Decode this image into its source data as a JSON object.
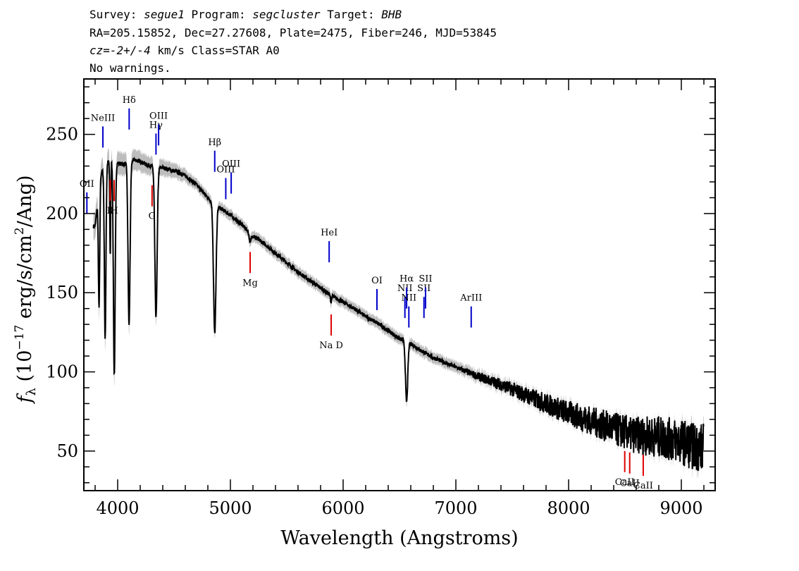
{
  "header": {
    "survey_label": "Survey:",
    "survey_value": "segue1",
    "program_label": "Program:",
    "program_value": "segcluster",
    "target_label": "Target:",
    "target_value": "BHB",
    "line2": "RA=205.15852, Dec=27.27608, Plate=2475, Fiber=246, MJD=53845",
    "cz_label": "cz",
    "cz_value": "=-2+/-4",
    "cz_rest": " km/s Class=STAR A0",
    "line4": "No warnings."
  },
  "colors": {
    "spectrum": "#000000",
    "error_band": "#bdbdbd",
    "emission_marker": "#0000cc",
    "absorption_marker": "#dd0000"
  },
  "chart_data": {
    "type": "line",
    "xlabel": "Wavelength (Angstroms)",
    "ylabel": "f_λ (10^-17 erg/s/cm^2/Ang)",
    "ylabel_parts": {
      "f": "f",
      "lambda": "λ",
      "open": " (10",
      "exp": "−17",
      "mid": " erg/s/cm",
      "sq": "2",
      "close": "/Ang)"
    },
    "xlim": [
      3700,
      9300
    ],
    "ylim": [
      25,
      285
    ],
    "x_ticks": [
      4000,
      5000,
      6000,
      7000,
      8000,
      9000
    ],
    "x_tick_labels": [
      "4000",
      "5000",
      "6000",
      "7000",
      "8000",
      "9000"
    ],
    "y_ticks": [
      50,
      100,
      150,
      200,
      250
    ],
    "y_tick_labels": [
      "50",
      "100",
      "150",
      "200",
      "250"
    ],
    "series": [
      {
        "continuum": [
          [
            3800,
            192
          ],
          [
            3850,
            225
          ],
          [
            3900,
            232
          ],
          [
            3950,
            234
          ],
          [
            4000,
            232
          ],
          [
            4050,
            231
          ],
          [
            4100,
            233
          ],
          [
            4150,
            234
          ],
          [
            4200,
            233
          ],
          [
            4250,
            231
          ],
          [
            4300,
            230
          ],
          [
            4350,
            229
          ],
          [
            4400,
            229
          ],
          [
            4450,
            228
          ],
          [
            4500,
            227
          ],
          [
            4600,
            224
          ],
          [
            4700,
            218
          ],
          [
            4800,
            210
          ],
          [
            4900,
            204
          ],
          [
            5000,
            199
          ],
          [
            5100,
            193
          ],
          [
            5200,
            186
          ],
          [
            5300,
            181
          ],
          [
            5400,
            175
          ],
          [
            5500,
            169
          ],
          [
            5600,
            163
          ],
          [
            5700,
            158
          ],
          [
            5800,
            153
          ],
          [
            5900,
            148
          ],
          [
            6000,
            144
          ],
          [
            6100,
            140
          ],
          [
            6200,
            135
          ],
          [
            6300,
            131
          ],
          [
            6400,
            126
          ],
          [
            6500,
            121
          ],
          [
            6600,
            118
          ],
          [
            6700,
            113
          ],
          [
            6800,
            109
          ],
          [
            6900,
            106
          ],
          [
            7000,
            103
          ],
          [
            7200,
            97
          ],
          [
            7400,
            92
          ],
          [
            7600,
            86
          ],
          [
            7800,
            80
          ],
          [
            8000,
            74
          ],
          [
            8200,
            69
          ],
          [
            8400,
            64
          ],
          [
            8600,
            60
          ],
          [
            8800,
            59
          ],
          [
            9000,
            56
          ],
          [
            9100,
            53
          ],
          [
            9200,
            52
          ]
        ],
        "absorption_lines": [
          {
            "center": 3835,
            "depth": 75,
            "width": 6
          },
          {
            "center": 3889,
            "depth": 110,
            "width": 7
          },
          {
            "center": 3934,
            "depth": 60,
            "width": 4
          },
          {
            "center": 3970,
            "depth": 135,
            "width": 8
          },
          {
            "center": 4101,
            "depth": 103,
            "width": 9
          },
          {
            "center": 4340,
            "depth": 95,
            "width": 10
          },
          {
            "center": 4861,
            "depth": 82,
            "width": 11
          },
          {
            "center": 5175,
            "depth": 6,
            "width": 8
          },
          {
            "center": 5892,
            "depth": 4,
            "width": 5
          },
          {
            "center": 6563,
            "depth": 38,
            "width": 10
          },
          {
            "center": 8542,
            "depth": 3,
            "width": 5
          }
        ]
      }
    ],
    "emission_markers": [
      {
        "label": "OII",
        "wavelength": 3727
      },
      {
        "label": "NeIII",
        "wavelength": 3869
      },
      {
        "label": "Hδ",
        "wavelength": 4102
      },
      {
        "label": "Hγ",
        "wavelength": 4340
      },
      {
        "label": "OIII",
        "wavelength": 4363
      },
      {
        "label": "Hβ",
        "wavelength": 4861
      },
      {
        "label": "OIII",
        "wavelength": 4959
      },
      {
        "label": "OIII",
        "wavelength": 5007
      },
      {
        "label": "HeI",
        "wavelength": 5876
      },
      {
        "label": "OI",
        "wavelength": 6300
      },
      {
        "label": "NII",
        "wavelength": 6548
      },
      {
        "label": "Hα",
        "wavelength": 6563
      },
      {
        "label": "NII",
        "wavelength": 6583
      },
      {
        "label": "SII",
        "wavelength": 6717
      },
      {
        "label": "SII",
        "wavelength": 6731
      },
      {
        "label": "ArIII",
        "wavelength": 7136
      }
    ],
    "absorption_markers": [
      {
        "label": "K",
        "wavelength": 3934
      },
      {
        "label": "H",
        "wavelength": 3969
      },
      {
        "label": "G",
        "wavelength": 4305
      },
      {
        "label": "Mg",
        "wavelength": 5175
      },
      {
        "label": "Na D",
        "wavelength": 5894
      },
      {
        "label": "CaII",
        "wavelength": 8498
      },
      {
        "label": "CaII",
        "wavelength": 8542
      },
      {
        "label": "CaII",
        "wavelength": 8662
      }
    ]
  }
}
